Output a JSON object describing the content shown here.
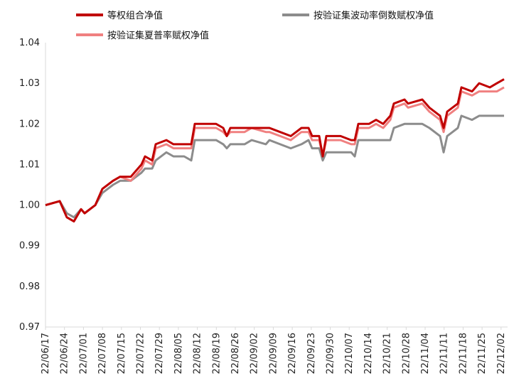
{
  "chart_data": {
    "type": "line",
    "title": "",
    "xlabel": "",
    "ylabel": "",
    "ylim": [
      0.97,
      1.04
    ],
    "yticks": [
      "0.97",
      "0.98",
      "0.99",
      "1.00",
      "1.01",
      "1.02",
      "1.03",
      "1.04"
    ],
    "xticks": [
      "22/06/17",
      "22/06/24",
      "22/07/01",
      "22/07/08",
      "22/07/15",
      "22/07/22",
      "22/07/29",
      "22/08/05",
      "22/08/12",
      "22/08/19",
      "22/08/26",
      "22/09/02",
      "22/09/09",
      "22/09/16",
      "22/09/23",
      "22/09/30",
      "22/10/07",
      "22/10/14",
      "22/10/21",
      "22/10/28",
      "22/11/04",
      "22/11/11",
      "22/11/18",
      "22/11/25",
      "22/12/02"
    ],
    "grid": false,
    "legend_placement": "top",
    "series": [
      {
        "name": "等权组合净值",
        "color": "#c00000",
        "values": [
          [
            0,
            1.0
          ],
          [
            4,
            1.001
          ],
          [
            6,
            0.997
          ],
          [
            8,
            0.996
          ],
          [
            10,
            0.999
          ],
          [
            11,
            0.998
          ],
          [
            14,
            1.0
          ],
          [
            16,
            1.004
          ],
          [
            19,
            1.006
          ],
          [
            21,
            1.007
          ],
          [
            24,
            1.007
          ],
          [
            27,
            1.01
          ],
          [
            28,
            1.012
          ],
          [
            30,
            1.011
          ],
          [
            31,
            1.015
          ],
          [
            34,
            1.016
          ],
          [
            36,
            1.015
          ],
          [
            39,
            1.015
          ],
          [
            41,
            1.015
          ],
          [
            42,
            1.02
          ],
          [
            48,
            1.02
          ],
          [
            50,
            1.019
          ],
          [
            51,
            1.017
          ],
          [
            52,
            1.019
          ],
          [
            56,
            1.019
          ],
          [
            58,
            1.019
          ],
          [
            62,
            1.019
          ],
          [
            63,
            1.019
          ],
          [
            66,
            1.018
          ],
          [
            69,
            1.017
          ],
          [
            72,
            1.019
          ],
          [
            74,
            1.019
          ],
          [
            75,
            1.017
          ],
          [
            77,
            1.017
          ],
          [
            78,
            1.012
          ],
          [
            79,
            1.017
          ],
          [
            83,
            1.017
          ],
          [
            86,
            1.016
          ],
          [
            87,
            1.016
          ],
          [
            88,
            1.02
          ],
          [
            91,
            1.02
          ],
          [
            93,
            1.021
          ],
          [
            95,
            1.02
          ],
          [
            97,
            1.022
          ],
          [
            98,
            1.025
          ],
          [
            101,
            1.026
          ],
          [
            102,
            1.025
          ],
          [
            106,
            1.026
          ],
          [
            108,
            1.024
          ],
          [
            111,
            1.022
          ],
          [
            112,
            1.019
          ],
          [
            113,
            1.023
          ],
          [
            116,
            1.025
          ],
          [
            117,
            1.029
          ],
          [
            120,
            1.028
          ],
          [
            122,
            1.03
          ],
          [
            125,
            1.029
          ],
          [
            127,
            1.03
          ],
          [
            129,
            1.031
          ]
        ]
      },
      {
        "name": "按验证集波动率倒数赋权净值",
        "color": "#8c8c8c",
        "values": [
          [
            0,
            1.0
          ],
          [
            4,
            1.001
          ],
          [
            6,
            0.998
          ],
          [
            8,
            0.997
          ],
          [
            10,
            0.999
          ],
          [
            11,
            0.998
          ],
          [
            14,
            1.0
          ],
          [
            16,
            1.003
          ],
          [
            19,
            1.005
          ],
          [
            21,
            1.006
          ],
          [
            24,
            1.006
          ],
          [
            27,
            1.008
          ],
          [
            28,
            1.009
          ],
          [
            30,
            1.009
          ],
          [
            31,
            1.011
          ],
          [
            34,
            1.013
          ],
          [
            36,
            1.012
          ],
          [
            39,
            1.012
          ],
          [
            41,
            1.011
          ],
          [
            42,
            1.016
          ],
          [
            48,
            1.016
          ],
          [
            50,
            1.015
          ],
          [
            51,
            1.014
          ],
          [
            52,
            1.015
          ],
          [
            56,
            1.015
          ],
          [
            58,
            1.016
          ],
          [
            62,
            1.015
          ],
          [
            63,
            1.016
          ],
          [
            66,
            1.015
          ],
          [
            69,
            1.014
          ],
          [
            72,
            1.015
          ],
          [
            74,
            1.016
          ],
          [
            75,
            1.014
          ],
          [
            77,
            1.014
          ],
          [
            78,
            1.011
          ],
          [
            79,
            1.013
          ],
          [
            83,
            1.013
          ],
          [
            86,
            1.013
          ],
          [
            87,
            1.012
          ],
          [
            88,
            1.016
          ],
          [
            91,
            1.016
          ],
          [
            93,
            1.016
          ],
          [
            95,
            1.016
          ],
          [
            97,
            1.016
          ],
          [
            98,
            1.019
          ],
          [
            101,
            1.02
          ],
          [
            102,
            1.02
          ],
          [
            106,
            1.02
          ],
          [
            108,
            1.019
          ],
          [
            111,
            1.017
          ],
          [
            112,
            1.013
          ],
          [
            113,
            1.017
          ],
          [
            116,
            1.019
          ],
          [
            117,
            1.022
          ],
          [
            120,
            1.021
          ],
          [
            122,
            1.022
          ],
          [
            125,
            1.022
          ],
          [
            127,
            1.022
          ],
          [
            129,
            1.022
          ]
        ]
      },
      {
        "name": "按验证集夏普率赋权净值",
        "color": "#f08080",
        "values": [
          [
            0,
            1.0
          ],
          [
            4,
            1.001
          ],
          [
            6,
            0.997
          ],
          [
            8,
            0.996
          ],
          [
            10,
            0.999
          ],
          [
            11,
            0.998
          ],
          [
            14,
            1.0
          ],
          [
            16,
            1.004
          ],
          [
            19,
            1.006
          ],
          [
            21,
            1.007
          ],
          [
            24,
            1.006
          ],
          [
            27,
            1.009
          ],
          [
            28,
            1.011
          ],
          [
            30,
            1.01
          ],
          [
            31,
            1.014
          ],
          [
            34,
            1.015
          ],
          [
            36,
            1.014
          ],
          [
            39,
            1.014
          ],
          [
            41,
            1.014
          ],
          [
            42,
            1.019
          ],
          [
            48,
            1.019
          ],
          [
            50,
            1.018
          ],
          [
            51,
            1.017
          ],
          [
            52,
            1.018
          ],
          [
            56,
            1.018
          ],
          [
            58,
            1.019
          ],
          [
            62,
            1.018
          ],
          [
            63,
            1.018
          ],
          [
            66,
            1.017
          ],
          [
            69,
            1.016
          ],
          [
            72,
            1.018
          ],
          [
            74,
            1.018
          ],
          [
            75,
            1.016
          ],
          [
            77,
            1.016
          ],
          [
            78,
            1.012
          ],
          [
            79,
            1.016
          ],
          [
            83,
            1.016
          ],
          [
            86,
            1.015
          ],
          [
            87,
            1.015
          ],
          [
            88,
            1.019
          ],
          [
            91,
            1.019
          ],
          [
            93,
            1.02
          ],
          [
            95,
            1.019
          ],
          [
            97,
            1.021
          ],
          [
            98,
            1.024
          ],
          [
            101,
            1.025
          ],
          [
            102,
            1.024
          ],
          [
            106,
            1.025
          ],
          [
            108,
            1.023
          ],
          [
            111,
            1.021
          ],
          [
            112,
            1.018
          ],
          [
            113,
            1.022
          ],
          [
            116,
            1.024
          ],
          [
            117,
            1.028
          ],
          [
            120,
            1.027
          ],
          [
            122,
            1.028
          ],
          [
            125,
            1.028
          ],
          [
            127,
            1.028
          ],
          [
            129,
            1.029
          ]
        ]
      }
    ]
  }
}
